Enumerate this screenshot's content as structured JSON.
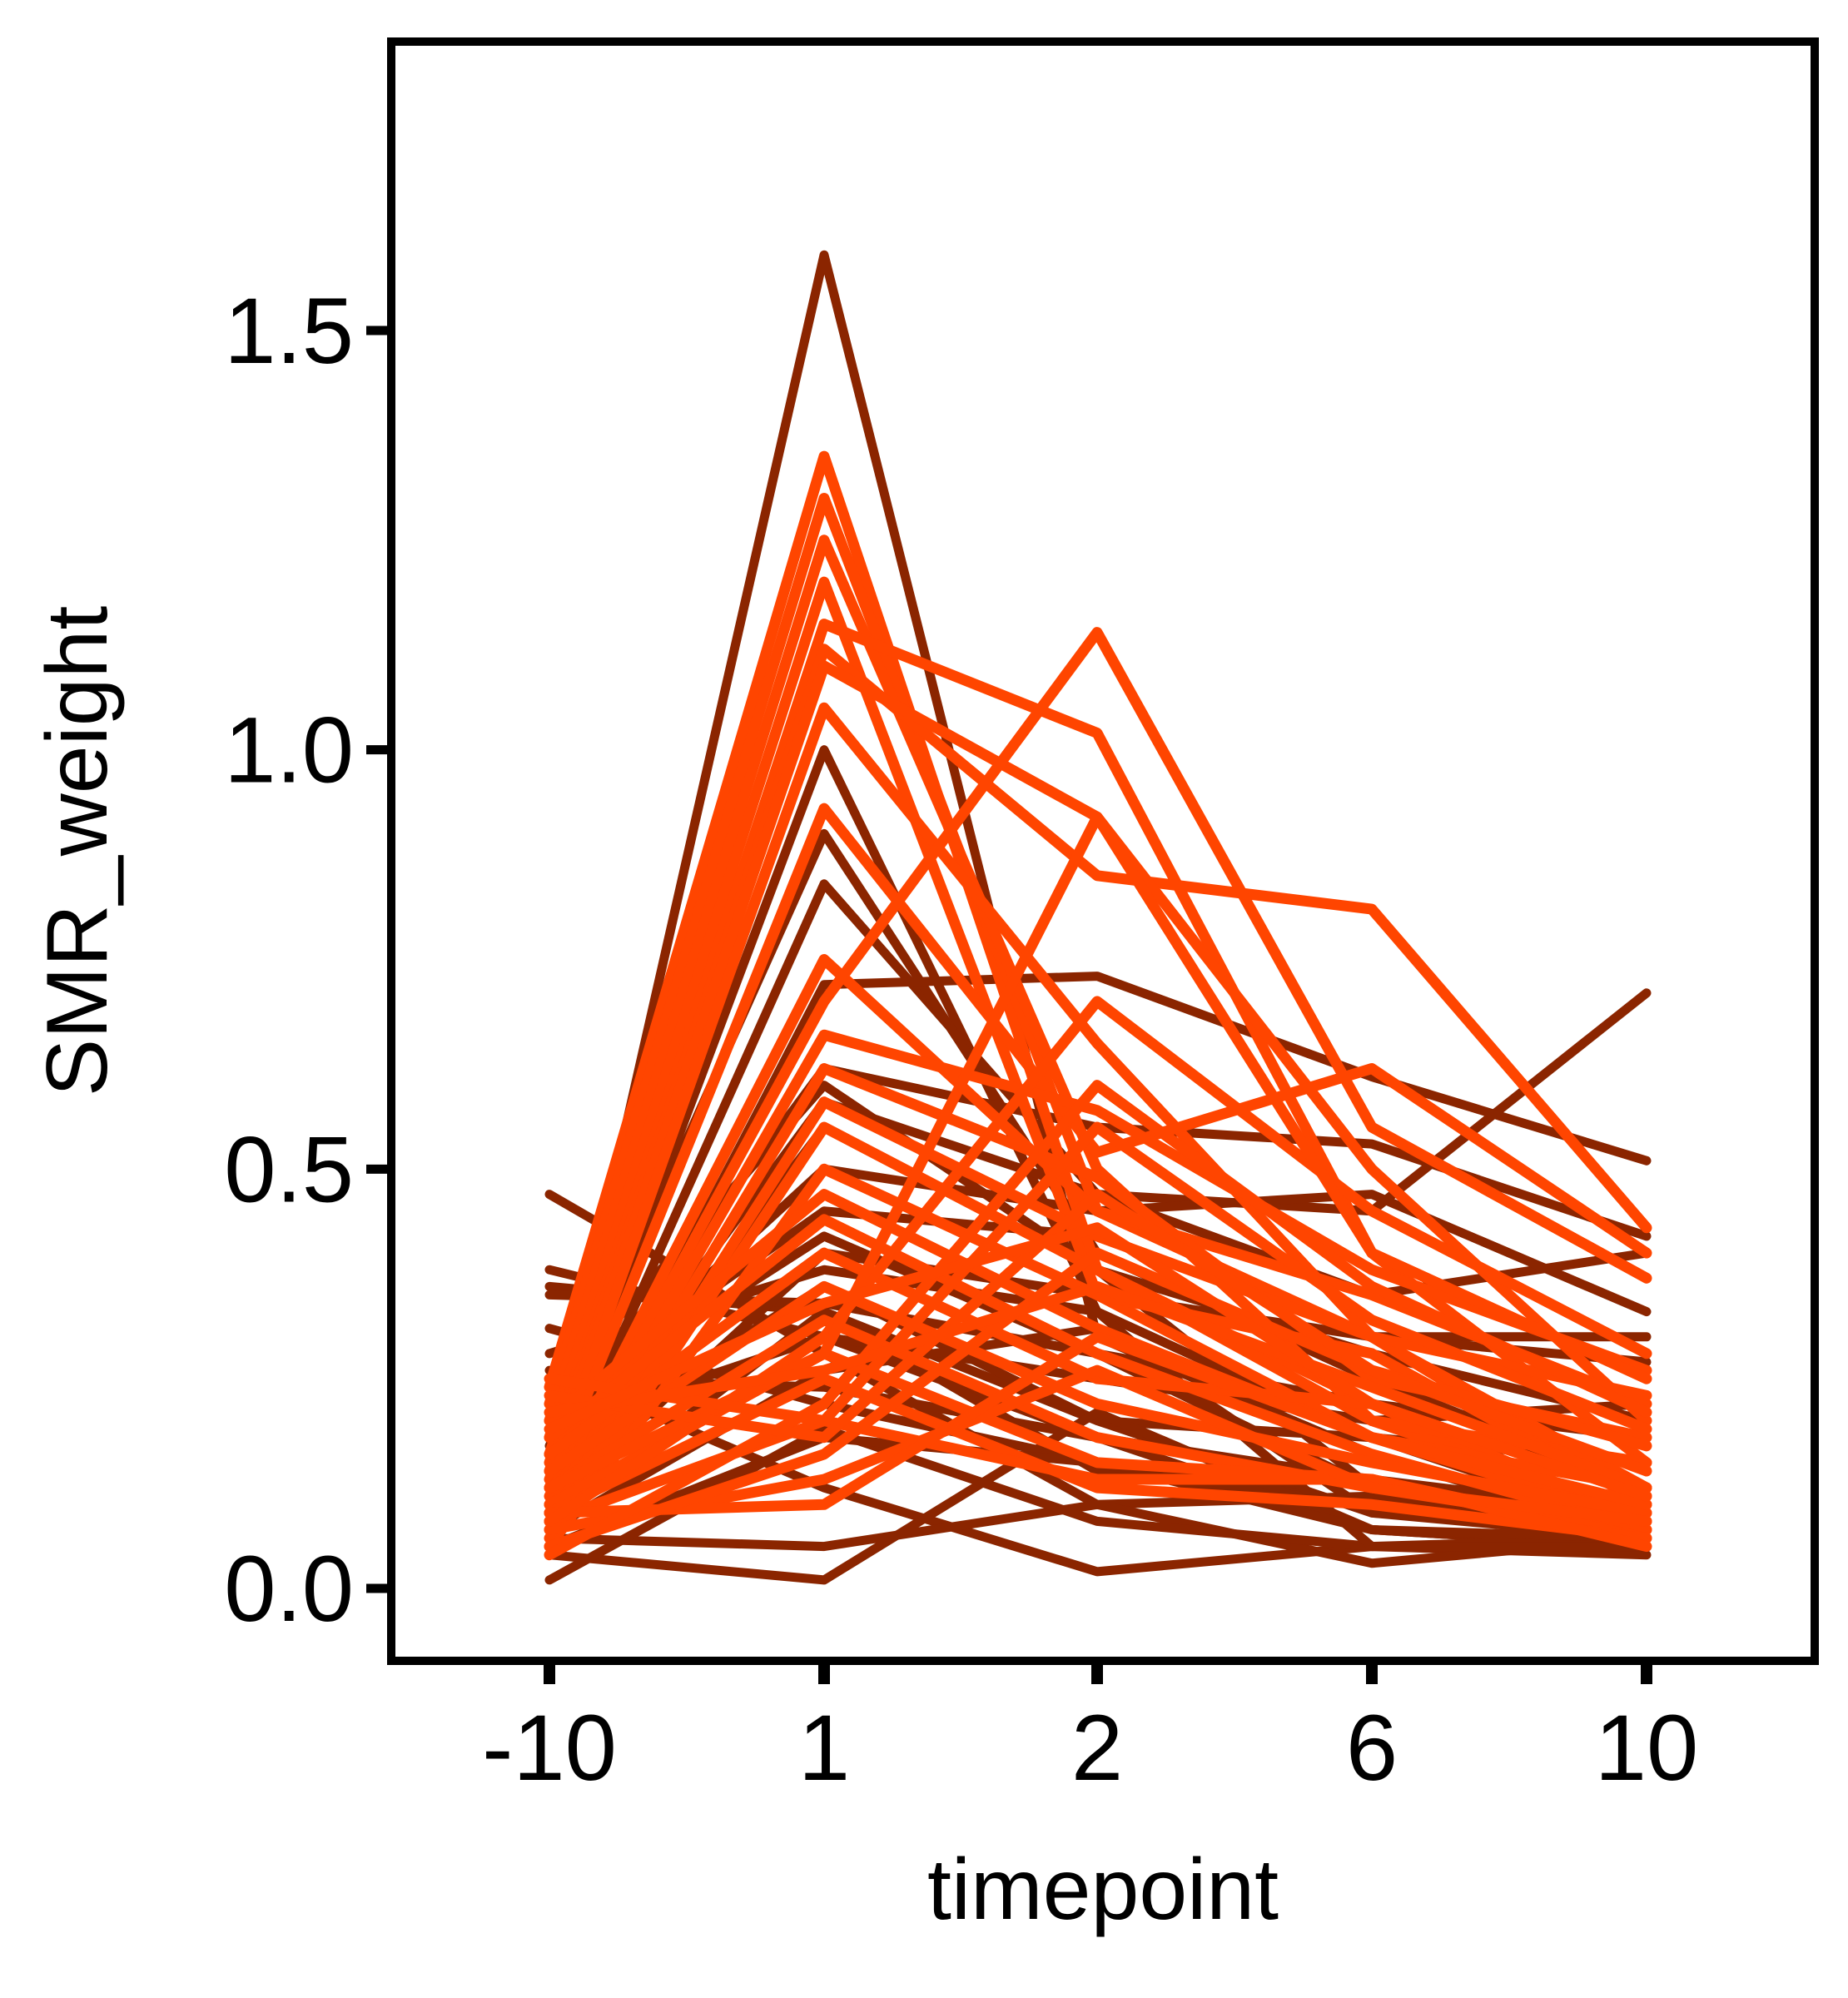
{
  "chart_data": {
    "type": "line",
    "xlabel": "timepoint",
    "ylabel": "SMR_weight",
    "categories": [
      "-10",
      "1",
      "2",
      "6",
      "10"
    ],
    "ylim": [
      -0.09,
      1.8
    ],
    "yticks": [
      0.0,
      0.5,
      1.0,
      1.5
    ],
    "ytick_labels": [
      "0.0",
      "0.5",
      "1.0",
      "1.5"
    ],
    "grid": false,
    "legend": "none",
    "colors": {
      "dark": "#8B2500",
      "bright": "#FF4500",
      "axis": "#000000",
      "background": "#FFFFFF"
    },
    "series": [
      {
        "group": "dark",
        "values": [
          0.47,
          0.28,
          0.1,
          0.11,
          0.06
        ]
      },
      {
        "group": "dark",
        "values": [
          0.38,
          0.3,
          0.18,
          0.07,
          0.05
        ]
      },
      {
        "group": "dark",
        "values": [
          0.36,
          0.33,
          0.2,
          0.09,
          0.06
        ]
      },
      {
        "group": "dark",
        "values": [
          0.35,
          0.34,
          0.28,
          0.12,
          0.08
        ]
      },
      {
        "group": "dark",
        "values": [
          0.31,
          0.22,
          0.15,
          0.1,
          0.07
        ]
      },
      {
        "group": "dark",
        "values": [
          0.26,
          0.12,
          0.02,
          0.05,
          0.04
        ]
      },
      {
        "group": "dark",
        "values": [
          0.15,
          1.59,
          0.3,
          0.16,
          0.06
        ]
      },
      {
        "group": "dark",
        "values": [
          0.13,
          1.0,
          0.33,
          0.18,
          0.07
        ]
      },
      {
        "group": "dark",
        "values": [
          0.11,
          0.84,
          0.47,
          0.45,
          0.71
        ]
      },
      {
        "group": "dark",
        "values": [
          0.17,
          0.9,
          0.4,
          0.25,
          0.12
        ]
      },
      {
        "group": "dark",
        "values": [
          0.09,
          0.72,
          0.73,
          0.61,
          0.51
        ]
      },
      {
        "group": "dark",
        "values": [
          0.18,
          0.62,
          0.55,
          0.53,
          0.42
        ]
      },
      {
        "group": "dark",
        "values": [
          0.14,
          0.58,
          0.47,
          0.35,
          0.4
        ]
      },
      {
        "group": "dark",
        "values": [
          0.2,
          0.5,
          0.45,
          0.47,
          0.33
        ]
      },
      {
        "group": "dark",
        "values": [
          0.12,
          0.55,
          0.38,
          0.28,
          0.2
        ]
      },
      {
        "group": "dark",
        "values": [
          0.22,
          0.45,
          0.42,
          0.3,
          0.3
        ]
      },
      {
        "group": "dark",
        "values": [
          0.1,
          0.4,
          0.35,
          0.3,
          0.27
        ]
      },
      {
        "group": "dark",
        "values": [
          0.16,
          0.36,
          0.2,
          0.18,
          0.15
        ]
      },
      {
        "group": "dark",
        "values": [
          0.08,
          0.33,
          0.14,
          0.1,
          0.05
        ]
      },
      {
        "group": "dark",
        "values": [
          0.19,
          0.3,
          0.25,
          0.2,
          0.22
        ]
      },
      {
        "group": "dark",
        "values": [
          0.07,
          0.26,
          0.31,
          0.09,
          0.07
        ]
      },
      {
        "group": "dark",
        "values": [
          0.25,
          0.24,
          0.18,
          0.13,
          0.09
        ]
      },
      {
        "group": "dark",
        "values": [
          0.04,
          0.01,
          0.21,
          0.07,
          0.05
        ]
      },
      {
        "group": "dark",
        "values": [
          0.06,
          0.05,
          0.1,
          0.03,
          0.06
        ]
      },
      {
        "group": "dark",
        "values": [
          0.01,
          0.19,
          0.08,
          0.05,
          0.06
        ]
      },
      {
        "group": "dark",
        "values": [
          0.23,
          0.6,
          0.38,
          0.12,
          0.09
        ]
      },
      {
        "group": "dark",
        "values": [
          0.21,
          0.42,
          0.28,
          0.22,
          0.18
        ]
      },
      {
        "group": "dark",
        "values": [
          0.28,
          0.38,
          0.33,
          0.05,
          0.05
        ]
      },
      {
        "group": "dark",
        "values": [
          0.05,
          0.18,
          0.15,
          0.07,
          0.06
        ]
      },
      {
        "group": "bright",
        "values": [
          0.24,
          1.35,
          0.38,
          0.22,
          0.08
        ]
      },
      {
        "group": "bright",
        "values": [
          0.22,
          1.3,
          0.45,
          0.3,
          0.1
        ]
      },
      {
        "group": "bright",
        "values": [
          0.2,
          1.25,
          0.5,
          0.2,
          0.09
        ]
      },
      {
        "group": "bright",
        "values": [
          0.18,
          1.2,
          0.35,
          0.18,
          0.12
        ]
      },
      {
        "group": "bright",
        "values": [
          0.16,
          1.15,
          1.02,
          0.4,
          0.15
        ]
      },
      {
        "group": "bright",
        "values": [
          0.15,
          1.12,
          0.85,
          0.81,
          0.43
        ]
      },
      {
        "group": "bright",
        "values": [
          0.14,
          1.1,
          0.92,
          0.5,
          0.2
        ]
      },
      {
        "group": "bright",
        "values": [
          0.13,
          1.05,
          0.65,
          0.3,
          0.12
        ]
      },
      {
        "group": "bright",
        "values": [
          0.12,
          0.93,
          0.52,
          0.62,
          0.4
        ]
      },
      {
        "group": "bright",
        "values": [
          0.11,
          0.75,
          0.45,
          0.35,
          0.22
        ]
      },
      {
        "group": "bright",
        "values": [
          0.1,
          0.7,
          1.14,
          0.55,
          0.37
        ]
      },
      {
        "group": "bright",
        "values": [
          0.09,
          0.66,
          0.57,
          0.38,
          0.26
        ]
      },
      {
        "group": "bright",
        "values": [
          0.08,
          0.62,
          0.49,
          0.25,
          0.18
        ]
      },
      {
        "group": "bright",
        "values": [
          0.07,
          0.58,
          0.42,
          0.3,
          0.23
        ]
      },
      {
        "group": "bright",
        "values": [
          0.06,
          0.55,
          0.38,
          0.2,
          0.15
        ]
      },
      {
        "group": "bright",
        "values": [
          0.05,
          0.5,
          0.35,
          0.28,
          0.1
        ]
      },
      {
        "group": "bright",
        "values": [
          0.2,
          0.47,
          0.31,
          0.18,
          0.08
        ]
      },
      {
        "group": "bright",
        "values": [
          0.18,
          0.44,
          0.28,
          0.16,
          0.07
        ]
      },
      {
        "group": "bright",
        "values": [
          0.16,
          0.4,
          0.25,
          0.22,
          0.11
        ]
      },
      {
        "group": "bright",
        "values": [
          0.14,
          0.36,
          0.22,
          0.15,
          0.09
        ]
      },
      {
        "group": "bright",
        "values": [
          0.12,
          0.32,
          0.18,
          0.12,
          0.07
        ]
      },
      {
        "group": "bright",
        "values": [
          0.1,
          0.28,
          0.15,
          0.13,
          0.06
        ]
      },
      {
        "group": "bright",
        "values": [
          0.09,
          0.25,
          0.12,
          0.1,
          0.06
        ]
      },
      {
        "group": "bright",
        "values": [
          0.08,
          0.2,
          0.13,
          0.13,
          0.05
        ]
      },
      {
        "group": "bright",
        "values": [
          0.07,
          0.13,
          0.26,
          0.12,
          0.08
        ]
      },
      {
        "group": "bright",
        "values": [
          0.09,
          0.1,
          0.3,
          0.18,
          0.1
        ]
      },
      {
        "group": "bright",
        "values": [
          0.05,
          0.16,
          0.4,
          0.26,
          0.17
        ]
      },
      {
        "group": "bright",
        "values": [
          0.04,
          0.22,
          0.6,
          0.36,
          0.21
        ]
      },
      {
        "group": "bright",
        "values": [
          0.08,
          0.3,
          0.7,
          0.45,
          0.28
        ]
      },
      {
        "group": "bright",
        "values": [
          0.12,
          0.28,
          0.92,
          0.4,
          0.25
        ]
      },
      {
        "group": "bright",
        "values": [
          0.25,
          0.2,
          0.55,
          0.32,
          0.19
        ]
      },
      {
        "group": "bright",
        "values": [
          0.23,
          0.18,
          0.47,
          0.26,
          0.14
        ]
      },
      {
        "group": "bright",
        "values": [
          0.21,
          0.26,
          0.36,
          0.24,
          0.12
        ]
      },
      {
        "group": "bright",
        "values": [
          0.19,
          0.34,
          0.43,
          0.22,
          0.11
        ]
      }
    ]
  }
}
